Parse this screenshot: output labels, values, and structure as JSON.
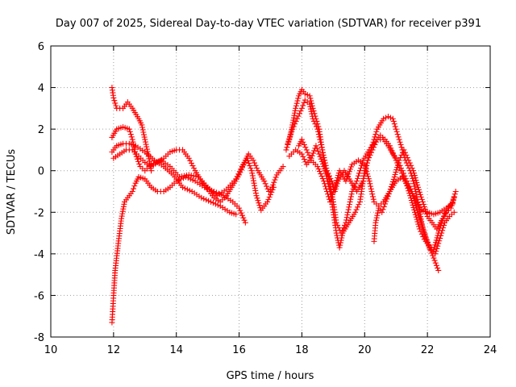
{
  "chart_data": {
    "type": "scatter",
    "title": "Day 007 of 2025, Sidereal Day-to-day VTEC variation (SDTVAR) for receiver p391",
    "xlabel": "GPS time / hours",
    "ylabel": "SDTVAR / TECUs",
    "xlim": [
      10,
      24
    ],
    "ylim": [
      -8,
      6
    ],
    "xticks": [
      10,
      12,
      14,
      16,
      18,
      20,
      22,
      24
    ],
    "yticks": [
      -8,
      -6,
      -4,
      -2,
      0,
      2,
      4,
      6
    ],
    "grid": true,
    "marker": "+",
    "marker_color": "#ff0000",
    "series": [
      {
        "name": "trace-1",
        "points": [
          [
            11.95,
            4.0
          ],
          [
            12.0,
            3.5
          ],
          [
            12.1,
            3.0
          ],
          [
            12.3,
            3.0
          ],
          [
            12.45,
            3.3
          ],
          [
            12.6,
            3.0
          ],
          [
            12.8,
            2.5
          ],
          [
            12.9,
            2.2
          ],
          [
            13.0,
            1.5
          ],
          [
            13.1,
            0.8
          ],
          [
            13.2,
            0.0
          ]
        ]
      },
      {
        "name": "trace-2",
        "points": [
          [
            11.95,
            -7.3
          ],
          [
            12.0,
            -6.0
          ],
          [
            12.05,
            -4.8
          ],
          [
            12.15,
            -3.5
          ],
          [
            12.25,
            -2.3
          ],
          [
            12.35,
            -1.5
          ],
          [
            12.5,
            -1.2
          ],
          [
            12.6,
            -1.0
          ],
          [
            12.7,
            -0.6
          ],
          [
            12.8,
            -0.3
          ],
          [
            13.0,
            -0.4
          ],
          [
            13.2,
            -0.8
          ],
          [
            13.4,
            -1.0
          ],
          [
            13.6,
            -1.0
          ],
          [
            13.8,
            -0.8
          ],
          [
            14.0,
            -0.5
          ],
          [
            14.3,
            -0.3
          ],
          [
            14.6,
            -0.5
          ],
          [
            14.9,
            -0.8
          ],
          [
            15.2,
            -1.0
          ],
          [
            15.5,
            -1.2
          ],
          [
            15.8,
            -1.5
          ],
          [
            16.0,
            -1.8
          ],
          [
            16.2,
            -2.5
          ]
        ]
      },
      {
        "name": "trace-3",
        "points": [
          [
            11.95,
            0.9
          ],
          [
            12.1,
            1.2
          ],
          [
            12.3,
            1.3
          ],
          [
            12.5,
            1.3
          ],
          [
            12.7,
            1.2
          ],
          [
            13.0,
            0.9
          ],
          [
            13.3,
            0.5
          ],
          [
            13.6,
            0.2
          ],
          [
            13.9,
            -0.2
          ],
          [
            14.2,
            -0.8
          ],
          [
            14.5,
            -1.0
          ],
          [
            14.8,
            -1.3
          ],
          [
            15.1,
            -1.5
          ],
          [
            15.4,
            -1.7
          ],
          [
            15.7,
            -2.0
          ],
          [
            15.9,
            -2.1
          ]
        ]
      },
      {
        "name": "trace-4",
        "points": [
          [
            12.0,
            0.6
          ],
          [
            12.2,
            0.8
          ],
          [
            12.4,
            1.0
          ],
          [
            12.6,
            1.0
          ],
          [
            12.8,
            0.7
          ],
          [
            13.0,
            0.4
          ],
          [
            13.2,
            0.2
          ],
          [
            13.4,
            0.4
          ],
          [
            13.6,
            0.6
          ],
          [
            13.8,
            0.9
          ],
          [
            14.0,
            1.0
          ],
          [
            14.2,
            1.0
          ],
          [
            14.4,
            0.6
          ],
          [
            14.6,
            0.0
          ],
          [
            14.8,
            -0.5
          ],
          [
            15.0,
            -0.9
          ],
          [
            15.2,
            -1.3
          ],
          [
            15.4,
            -1.5
          ],
          [
            15.6,
            -1.2
          ],
          [
            15.8,
            -0.7
          ],
          [
            16.0,
            -0.2
          ],
          [
            16.2,
            0.5
          ],
          [
            16.3,
            0.8
          ],
          [
            16.45,
            0.5
          ],
          [
            16.6,
            0.0
          ],
          [
            16.8,
            -0.5
          ],
          [
            16.95,
            -1.0
          ],
          [
            17.05,
            -0.8
          ],
          [
            17.2,
            -0.2
          ],
          [
            17.4,
            0.2
          ]
        ]
      },
      {
        "name": "trace-5",
        "points": [
          [
            11.95,
            1.6
          ],
          [
            12.1,
            2.0
          ],
          [
            12.3,
            2.1
          ],
          [
            12.5,
            2.0
          ],
          [
            12.6,
            1.5
          ],
          [
            12.7,
            0.8
          ],
          [
            12.85,
            0.2
          ],
          [
            13.0,
            0.0
          ],
          [
            13.2,
            0.3
          ],
          [
            13.5,
            0.5
          ],
          [
            13.8,
            0.2
          ],
          [
            14.1,
            -0.3
          ],
          [
            14.4,
            -0.2
          ],
          [
            14.7,
            -0.3
          ],
          [
            15.0,
            -0.8
          ],
          [
            15.3,
            -1.2
          ],
          [
            15.6,
            -0.9
          ],
          [
            15.9,
            -0.4
          ],
          [
            16.1,
            0.2
          ],
          [
            16.25,
            0.6
          ],
          [
            16.4,
            0.0
          ],
          [
            16.55,
            -1.2
          ],
          [
            16.7,
            -1.9
          ],
          [
            16.9,
            -1.5
          ],
          [
            17.1,
            -0.8
          ]
        ]
      },
      {
        "name": "trace-6",
        "points": [
          [
            17.5,
            1.0
          ],
          [
            17.6,
            1.5
          ],
          [
            17.7,
            2.2
          ],
          [
            17.8,
            3.0
          ],
          [
            17.9,
            3.6
          ],
          [
            18.0,
            3.9
          ],
          [
            18.1,
            3.7
          ],
          [
            18.25,
            3.6
          ],
          [
            18.35,
            3.0
          ],
          [
            18.45,
            2.5
          ],
          [
            18.55,
            2.0
          ],
          [
            18.65,
            1.0
          ],
          [
            18.75,
            0.0
          ],
          [
            18.9,
            -1.0
          ],
          [
            19.0,
            -2.0
          ],
          [
            19.1,
            -3.0
          ],
          [
            19.2,
            -3.7
          ],
          [
            19.3,
            -3.0
          ],
          [
            19.5,
            -2.5
          ],
          [
            19.7,
            -2.0
          ],
          [
            19.85,
            -1.5
          ],
          [
            20.0,
            0.0
          ],
          [
            20.2,
            1.0
          ],
          [
            20.4,
            2.0
          ],
          [
            20.6,
            2.5
          ],
          [
            20.75,
            2.6
          ],
          [
            20.9,
            2.5
          ],
          [
            21.0,
            2.0
          ],
          [
            21.1,
            1.5
          ],
          [
            21.2,
            1.0
          ],
          [
            21.3,
            0.5
          ],
          [
            21.45,
            0.0
          ],
          [
            21.55,
            -0.5
          ],
          [
            21.7,
            -1.5
          ],
          [
            21.85,
            -2.8
          ],
          [
            22.0,
            -3.5
          ],
          [
            22.2,
            -4.2
          ],
          [
            22.35,
            -4.8
          ]
        ]
      },
      {
        "name": "trace-7",
        "points": [
          [
            17.55,
            1.3
          ],
          [
            17.7,
            2.0
          ],
          [
            17.85,
            2.5
          ],
          [
            18.0,
            3.0
          ],
          [
            18.1,
            3.4
          ],
          [
            18.25,
            3.2
          ],
          [
            18.35,
            2.5
          ],
          [
            18.5,
            2.0
          ],
          [
            18.65,
            1.0
          ],
          [
            18.8,
            0.0
          ],
          [
            18.95,
            -0.5
          ],
          [
            19.05,
            -1.0
          ],
          [
            19.15,
            -0.5
          ],
          [
            19.35,
            0.0
          ],
          [
            19.55,
            -0.5
          ],
          [
            19.75,
            -1.0
          ],
          [
            19.95,
            -0.5
          ],
          [
            20.1,
            0.5
          ],
          [
            20.25,
            1.0
          ],
          [
            20.4,
            1.5
          ],
          [
            20.6,
            1.5
          ],
          [
            20.75,
            1.2
          ],
          [
            20.9,
            0.8
          ],
          [
            21.05,
            0.5
          ],
          [
            21.2,
            0.0
          ],
          [
            21.35,
            -0.5
          ],
          [
            21.5,
            -1.0
          ],
          [
            21.65,
            -1.8
          ],
          [
            21.8,
            -2.5
          ],
          [
            21.95,
            -3.2
          ],
          [
            22.1,
            -3.8
          ],
          [
            22.25,
            -4.0
          ],
          [
            22.35,
            -3.5
          ],
          [
            22.45,
            -3.0
          ],
          [
            22.55,
            -2.5
          ],
          [
            22.7,
            -2.2
          ],
          [
            22.85,
            -2.0
          ]
        ]
      },
      {
        "name": "trace-8",
        "points": [
          [
            17.6,
            0.7
          ],
          [
            17.8,
            1.0
          ],
          [
            18.0,
            0.8
          ],
          [
            18.15,
            0.3
          ],
          [
            18.3,
            0.6
          ],
          [
            18.45,
            1.2
          ],
          [
            18.55,
            0.8
          ],
          [
            18.7,
            0.2
          ],
          [
            18.85,
            -0.3
          ],
          [
            19.0,
            -1.5
          ],
          [
            19.1,
            -2.5
          ],
          [
            19.25,
            -3.0
          ],
          [
            19.4,
            -2.5
          ],
          [
            19.6,
            -1.0
          ],
          [
            19.75,
            -0.5
          ],
          [
            19.95,
            0.5
          ],
          [
            20.15,
            1.0
          ],
          [
            20.35,
            1.4
          ],
          [
            20.5,
            1.7
          ],
          [
            20.65,
            1.5
          ],
          [
            20.8,
            1.2
          ],
          [
            21.0,
            0.5
          ],
          [
            21.15,
            0.0
          ],
          [
            21.3,
            -0.5
          ],
          [
            21.45,
            -1.2
          ],
          [
            21.6,
            -2.0
          ],
          [
            21.75,
            -2.8
          ],
          [
            21.9,
            -3.3
          ],
          [
            22.05,
            -3.6
          ],
          [
            22.2,
            -3.8
          ],
          [
            22.35,
            -3.0
          ],
          [
            22.5,
            -2.3
          ],
          [
            22.65,
            -1.8
          ],
          [
            22.8,
            -1.5
          ],
          [
            22.9,
            -1.0
          ]
        ]
      },
      {
        "name": "trace-9",
        "points": [
          [
            17.9,
            1.2
          ],
          [
            18.0,
            1.5
          ],
          [
            18.15,
            1.0
          ],
          [
            18.3,
            0.5
          ],
          [
            18.5,
            0.2
          ],
          [
            18.7,
            -0.5
          ],
          [
            18.9,
            -1.5
          ],
          [
            19.05,
            -0.8
          ],
          [
            19.2,
            0.0
          ],
          [
            19.4,
            -0.5
          ],
          [
            19.6,
            0.3
          ],
          [
            19.8,
            0.5
          ],
          [
            20.0,
            0.3
          ],
          [
            20.15,
            -0.5
          ],
          [
            20.3,
            -1.5
          ],
          [
            20.45,
            -1.7
          ],
          [
            20.6,
            -1.5
          ],
          [
            20.8,
            -1.0
          ],
          [
            21.0,
            -0.5
          ],
          [
            21.2,
            -0.3
          ],
          [
            21.4,
            -0.8
          ],
          [
            21.6,
            -1.3
          ],
          [
            21.8,
            -1.9
          ],
          [
            22.0,
            -2.0
          ],
          [
            22.2,
            -2.1
          ],
          [
            22.4,
            -2.0
          ],
          [
            22.6,
            -1.8
          ],
          [
            22.8,
            -1.6
          ]
        ]
      },
      {
        "name": "trace-10",
        "points": [
          [
            20.3,
            -3.4
          ],
          [
            20.35,
            -2.5
          ],
          [
            20.45,
            -1.8
          ],
          [
            20.55,
            -2.0
          ],
          [
            20.65,
            -1.6
          ],
          [
            20.8,
            -1.0
          ],
          [
            20.95,
            -0.3
          ],
          [
            21.1,
            0.5
          ],
          [
            21.25,
            1.0
          ],
          [
            21.4,
            0.5
          ],
          [
            21.55,
            0.0
          ],
          [
            21.7,
            -0.8
          ],
          [
            21.85,
            -1.5
          ],
          [
            22.0,
            -2.2
          ],
          [
            22.15,
            -2.5
          ],
          [
            22.3,
            -2.8
          ],
          [
            22.45,
            -2.4
          ],
          [
            22.6,
            -2.0
          ],
          [
            22.75,
            -1.8
          ],
          [
            22.85,
            -1.3
          ]
        ]
      }
    ]
  }
}
